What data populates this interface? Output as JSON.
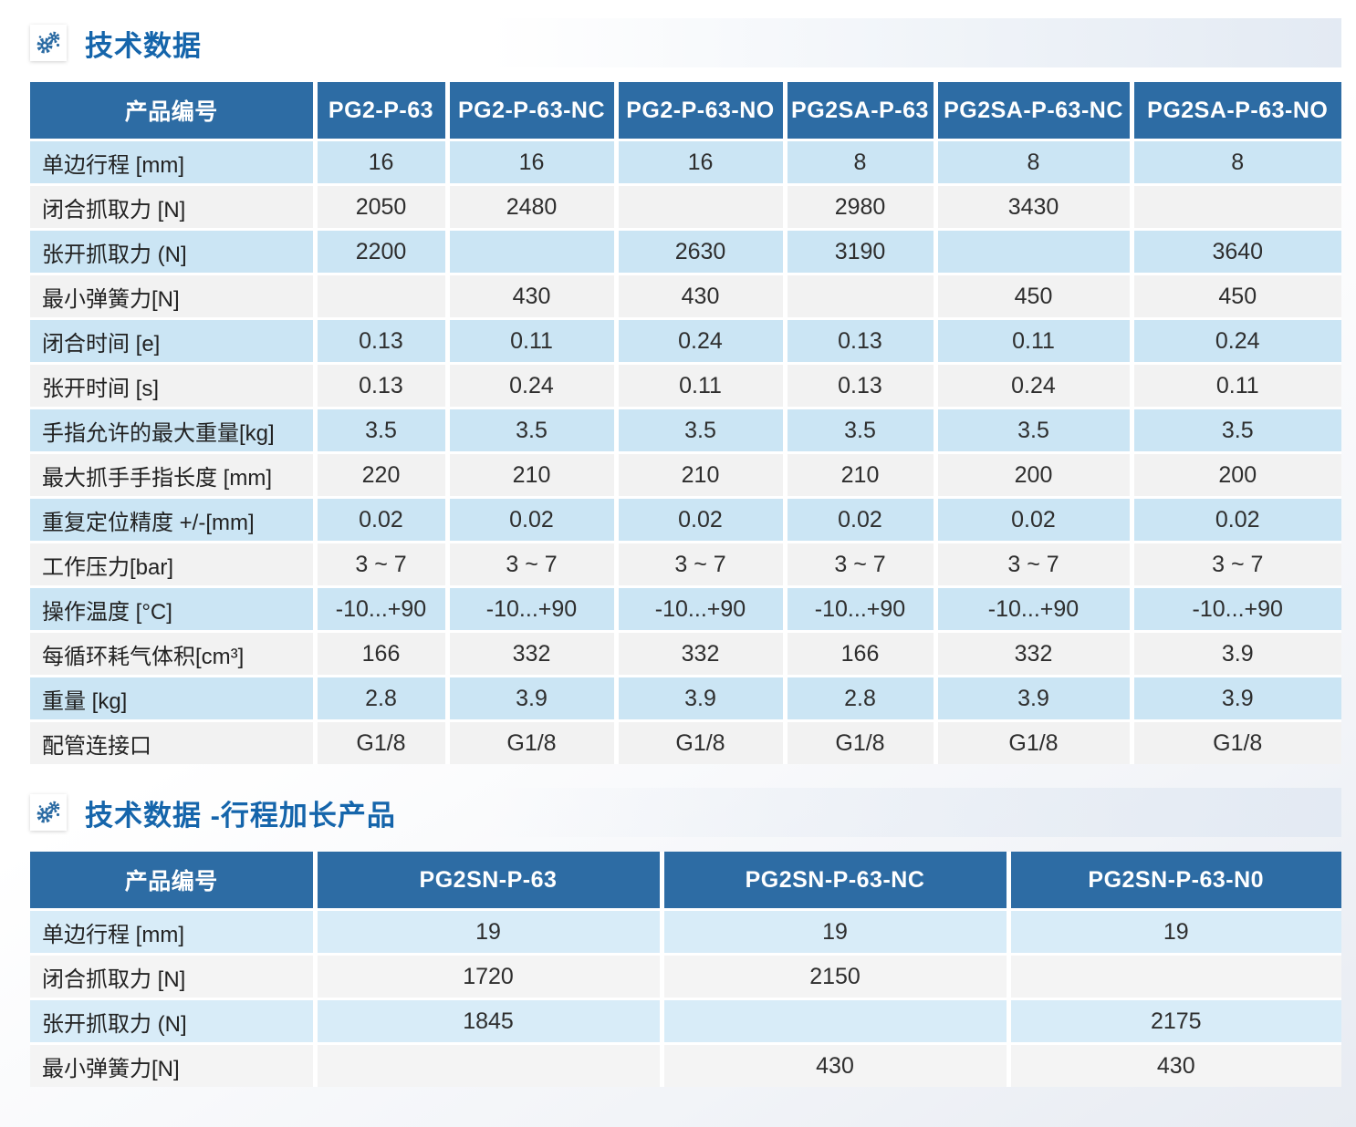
{
  "sections": [
    {
      "title": "技术数据",
      "icon": "gears-icon"
    },
    {
      "title": "技术数据 -行程加长产品",
      "icon": "gears-icon"
    }
  ],
  "colors": {
    "header_bg": "#2d6ca4",
    "title_text": "#1565ab",
    "row_blue_table1": "#cbe5f4",
    "row_blue_table2": "#d8ecf8",
    "row_gray": "#f2f2f2",
    "icon_gear": "#2b6ba3"
  },
  "tables": [
    {
      "headers": [
        "产品编号",
        "PG2-P-63",
        "PG2-P-63-NC",
        "PG2-P-63-NO",
        "PG2SA-P-63",
        "PG2SA-P-63-NC",
        "PG2SA-P-63-NO"
      ],
      "rows": [
        {
          "label": "单边行程 [mm]",
          "values": [
            "16",
            "16",
            "16",
            "8",
            "8",
            "8"
          ]
        },
        {
          "label": "闭合抓取力 [N]",
          "values": [
            "2050",
            "2480",
            "",
            "2980",
            "3430",
            ""
          ]
        },
        {
          "label": "张开抓取力 (N]",
          "values": [
            "2200",
            "",
            "2630",
            "3190",
            "",
            "3640"
          ]
        },
        {
          "label": "最小弹簧力[N]",
          "values": [
            "",
            "430",
            "430",
            "",
            "450",
            "450"
          ]
        },
        {
          "label": "闭合时间 [e]",
          "values": [
            "0.13",
            "0.11",
            "0.24",
            "0.13",
            "0.11",
            "0.24"
          ]
        },
        {
          "label": "张开时间 [s]",
          "values": [
            "0.13",
            "0.24",
            "0.11",
            "0.13",
            "0.24",
            "0.11"
          ]
        },
        {
          "label": "手指允许的最大重量[kg]",
          "values": [
            "3.5",
            "3.5",
            "3.5",
            "3.5",
            "3.5",
            "3.5"
          ]
        },
        {
          "label": "最大抓手手指长度 [mm]",
          "values": [
            "220",
            "210",
            "210",
            "210",
            "200",
            "200"
          ]
        },
        {
          "label": "重复定位精度 +/-[mm]",
          "values": [
            "0.02",
            "0.02",
            "0.02",
            "0.02",
            "0.02",
            "0.02"
          ]
        },
        {
          "label": "工作压力[bar]",
          "values": [
            "3 ~ 7",
            "3 ~ 7",
            "3 ~ 7",
            "3 ~ 7",
            "3 ~ 7",
            "3 ~ 7"
          ]
        },
        {
          "label": "操作温度 [°C]",
          "values": [
            "-10...+90",
            "-10...+90",
            "-10...+90",
            "-10...+90",
            "-10...+90",
            "-10...+90"
          ]
        },
        {
          "label": "每循环耗气体积[cm³]",
          "values": [
            "166",
            "332",
            "332",
            "166",
            "332",
            "3.9"
          ]
        },
        {
          "label": "重量 [kg]",
          "values": [
            "2.8",
            "3.9",
            "3.9",
            "2.8",
            "3.9",
            "3.9"
          ]
        },
        {
          "label": "配管连接口",
          "values": [
            "G1/8",
            "G1/8",
            "G1/8",
            "G1/8",
            "G1/8",
            "G1/8"
          ]
        }
      ]
    },
    {
      "headers": [
        "产品编号",
        "PG2SN-P-63",
        "PG2SN-P-63-NC",
        "PG2SN-P-63-N0"
      ],
      "rows": [
        {
          "label": "单边行程 [mm]",
          "values": [
            "19",
            "19",
            "19"
          ]
        },
        {
          "label": "闭合抓取力 [N]",
          "values": [
            "1720",
            "2150",
            ""
          ]
        },
        {
          "label": "张开抓取力 (N]",
          "values": [
            "1845",
            "",
            "2175"
          ]
        },
        {
          "label": "最小弹簧力[N]",
          "values": [
            "",
            "430",
            "430"
          ]
        }
      ]
    }
  ]
}
